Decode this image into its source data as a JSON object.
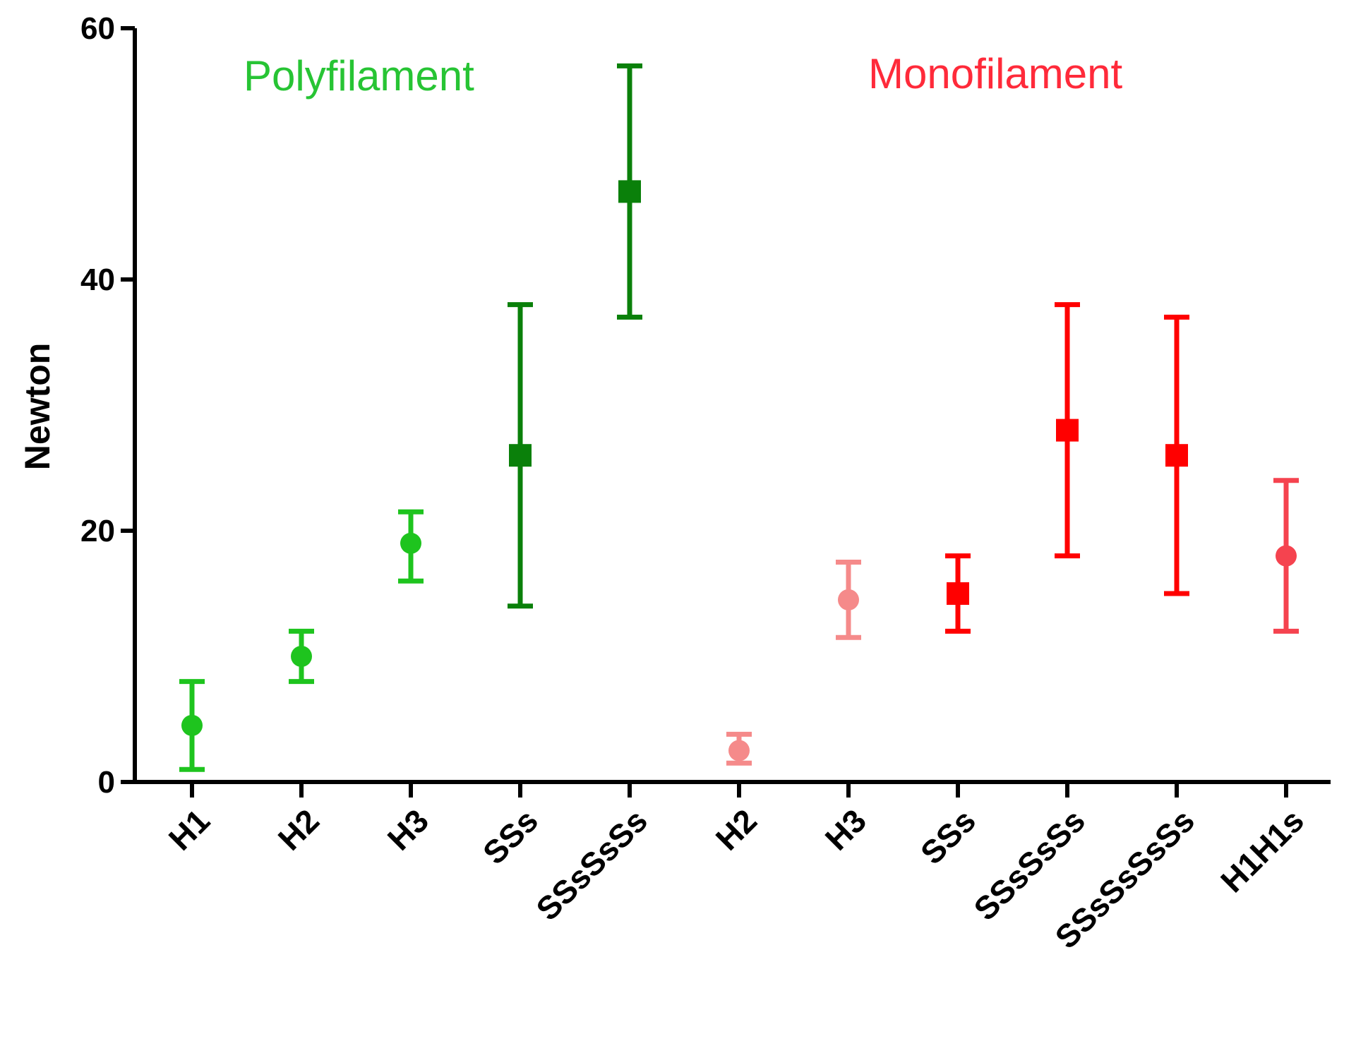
{
  "chart_data": {
    "type": "scatter",
    "ylabel": "Newton",
    "ylim": [
      0,
      60
    ],
    "yticks": [
      0,
      20,
      40,
      60
    ],
    "grid": false,
    "annotations": [
      {
        "text": "Polyfilament",
        "color": "#27c434"
      },
      {
        "text": "Monofilament",
        "color": "#ff2a3a"
      }
    ],
    "points": [
      {
        "category": "H1",
        "mean": 4.5,
        "low": 1,
        "high": 8,
        "color": "#1ec41e",
        "marker": "circle"
      },
      {
        "category": "H2",
        "mean": 10,
        "low": 8,
        "high": 12,
        "color": "#1ec41e",
        "marker": "circle"
      },
      {
        "category": "H3",
        "mean": 19,
        "low": 16,
        "high": 21.5,
        "color": "#1ec41e",
        "marker": "circle"
      },
      {
        "category": "SSs",
        "mean": 26,
        "low": 14,
        "high": 38,
        "color": "#0a800a",
        "marker": "square"
      },
      {
        "category": "SSsSsSs",
        "mean": 47,
        "low": 37,
        "high": 57,
        "color": "#0a800a",
        "marker": "square"
      },
      {
        "category": "H2",
        "mean": 2.5,
        "low": 1.5,
        "high": 3.8,
        "color": "#f58a8a",
        "marker": "circle"
      },
      {
        "category": "H3",
        "mean": 14.5,
        "low": 11.5,
        "high": 17.5,
        "color": "#f58a8a",
        "marker": "circle"
      },
      {
        "category": "SSs",
        "mean": 15,
        "low": 12,
        "high": 18,
        "color": "#ff0000",
        "marker": "square"
      },
      {
        "category": "SSsSsSs",
        "mean": 28,
        "low": 18,
        "high": 38,
        "color": "#ff0000",
        "marker": "square"
      },
      {
        "category": "SSsSsSsSs",
        "mean": 26,
        "low": 15,
        "high": 37,
        "color": "#ff0000",
        "marker": "square"
      },
      {
        "category": "H1H1s",
        "mean": 18,
        "low": 12,
        "high": 24,
        "color": "#f5434f",
        "marker": "circle"
      }
    ]
  }
}
